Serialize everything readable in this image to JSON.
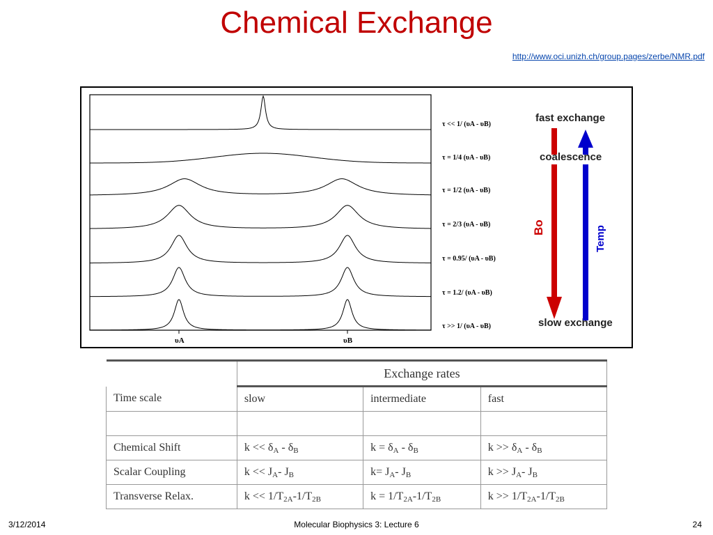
{
  "slide": {
    "title": "Chemical Exchange",
    "link": "http://www.oci.unizh.ch/group.pages/zerbe/NMR.pdf"
  },
  "figure": {
    "tau_labels": [
      "τ << 1/ (υA - υB)",
      "τ = 1/4 (υA - υB)",
      "τ = 1/2 (υA - υB)",
      "τ = 2/3 (υA - υB)",
      "τ = 0.95/ (υA - υB)",
      "τ = 1.2/ (υA - υB)",
      "τ >> 1/ (υA - υB)"
    ],
    "x_labels": {
      "a": "υA",
      "b": "υB"
    },
    "fast_exchange": "fast exchange",
    "coalescence": "coalescence",
    "slow_exchange": "slow exchange",
    "bo_label": "Bo",
    "temp_label": "Temp",
    "colors": {
      "bo_arrow": "#cc0000",
      "temp_arrow": "#0000cc",
      "title": "#c00000"
    }
  },
  "table": {
    "header_group": "Exchange rates",
    "time_scale": "Time scale",
    "columns": [
      "slow",
      "intermediate",
      "fast"
    ],
    "rows": [
      {
        "label": "Chemical Shift",
        "cells": [
          "k << δA - δB",
          "k = δA - δB",
          "k >> δA - δB"
        ]
      },
      {
        "label": "Scalar Coupling",
        "cells": [
          "k << JA- JB",
          "k= JA- JB",
          "k >> JA- JB"
        ]
      },
      {
        "label": "Transverse Relax.",
        "cells": [
          "k << 1/T2A-1/T2B",
          "k = 1/T2A-1/T2B",
          "k >> 1/T2A-1/T2B"
        ]
      }
    ]
  },
  "footer": {
    "date": "3/12/2014",
    "center": "Molecular Biophysics 3: Lecture 6",
    "page": "24"
  }
}
